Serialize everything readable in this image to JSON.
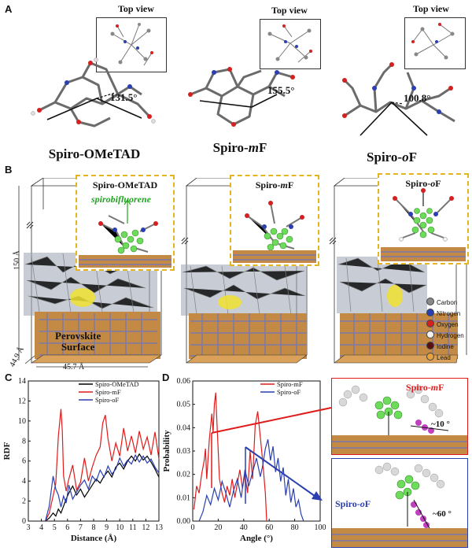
{
  "panel_a": {
    "label": "A",
    "top_view_label": "Top view",
    "molecules": [
      {
        "name": "Spiro-OMeTAD",
        "angle": "131.5°"
      },
      {
        "name_html": "Spiro-<i>m</i>F",
        "name": "Spiro-mF",
        "angle": "155.5°"
      },
      {
        "name_html": "Spiro-<i>o</i>F",
        "name": "Spiro-oF",
        "angle": "100.8°"
      }
    ]
  },
  "panel_b": {
    "label": "B",
    "insets": [
      {
        "title": "Spiro-OMeTAD",
        "annotation": "spirobifluorene"
      },
      {
        "title": "Spiro-mF"
      },
      {
        "title": "Spiro-oF"
      }
    ],
    "box_height": "150 Å",
    "box_depth": "44.9 Å",
    "box_width": "45.7 Å",
    "surface_label_line1": "Perovskite",
    "surface_label_line2": "Surface",
    "legend": [
      {
        "name": "Carbon",
        "color": "#8a8a8a"
      },
      {
        "name": "Nitrogen",
        "color": "#2b3fb0"
      },
      {
        "name": "Oxygen",
        "color": "#d42020"
      },
      {
        "name": "Hydrogen",
        "color": "#f2f2f2"
      },
      {
        "name": "Iodine",
        "color": "#5a1010"
      },
      {
        "name": "Lead",
        "color": "#e6a23c"
      }
    ]
  },
  "panel_c": {
    "label": "C"
  },
  "panel_d": {
    "label": "D",
    "inset_labels": [
      "Spiro-mF",
      "Spiro-oF"
    ],
    "inset_angles": [
      "~10 °",
      "~60 °"
    ]
  },
  "chart_data": [
    {
      "type": "line",
      "panel": "C",
      "xlabel": "Distance (Å)",
      "ylabel": "RDF",
      "xlim": [
        3,
        13
      ],
      "ylim": [
        0,
        14
      ],
      "xticks": [
        3,
        4,
        5,
        6,
        7,
        8,
        9,
        10,
        11,
        12,
        13
      ],
      "yticks": [
        0,
        2,
        4,
        6,
        8,
        10,
        12,
        14
      ],
      "legend_position": "top-right",
      "series": [
        {
          "name": "Spiro-OMeTAD",
          "color": "#000000",
          "x": [
            4.3,
            4.6,
            4.9,
            5.1,
            5.3,
            5.5,
            5.7,
            5.9,
            6.1,
            6.4,
            6.7,
            7.0,
            7.3,
            7.6,
            7.9,
            8.2,
            8.5,
            8.8,
            9.1,
            9.4,
            9.7,
            10.0,
            10.3,
            10.6,
            10.9,
            11.2,
            11.5,
            11.8,
            12.1,
            12.4,
            12.7,
            13.0
          ],
          "y": [
            0,
            0.3,
            0.8,
            0.5,
            1.2,
            0.8,
            1.5,
            2.2,
            2.8,
            3.5,
            2.6,
            3.2,
            2.4,
            3.0,
            3.6,
            4.2,
            3.8,
            4.5,
            5.0,
            4.4,
            5.4,
            5.8,
            5.2,
            6.0,
            6.5,
            6.0,
            6.7,
            6.1,
            6.5,
            5.9,
            5.2,
            4.4
          ]
        },
        {
          "name": "Spiro-mF",
          "color": "#e01b1b",
          "x": [
            4.3,
            4.6,
            4.9,
            5.1,
            5.3,
            5.5,
            5.6,
            5.7,
            5.9,
            6.1,
            6.4,
            6.7,
            7.0,
            7.3,
            7.6,
            7.9,
            8.2,
            8.5,
            8.7,
            8.9,
            9.1,
            9.4,
            9.7,
            10.0,
            10.3,
            10.6,
            10.9,
            11.2,
            11.5,
            11.8,
            12.1,
            12.4,
            12.7,
            13.0
          ],
          "y": [
            0,
            0.8,
            2.5,
            3.8,
            8.5,
            11.2,
            9.0,
            4.5,
            3.0,
            4.2,
            5.6,
            3.1,
            3.9,
            6.3,
            4.0,
            5.4,
            6.6,
            7.4,
            9.8,
            10.6,
            8.2,
            6.0,
            7.8,
            6.5,
            9.3,
            7.0,
            8.5,
            6.8,
            9.0,
            7.2,
            8.4,
            6.6,
            8.9,
            6.2
          ]
        },
        {
          "name": "Spiro-oF",
          "color": "#2b3fb0",
          "x": [
            4.3,
            4.6,
            4.9,
            5.1,
            5.3,
            5.5,
            5.7,
            5.9,
            6.1,
            6.4,
            6.7,
            7.0,
            7.3,
            7.6,
            7.9,
            8.2,
            8.5,
            8.8,
            9.1,
            9.4,
            9.7,
            10.0,
            10.3,
            10.6,
            10.9,
            11.2,
            11.5,
            11.8,
            12.1,
            12.4,
            12.7,
            13.0
          ],
          "y": [
            0,
            1.5,
            4.5,
            3.2,
            2.6,
            1.4,
            2.5,
            1.8,
            3.6,
            2.2,
            2.9,
            3.6,
            4.1,
            3.2,
            4.5,
            4.0,
            5.1,
            4.4,
            5.5,
            4.7,
            5.2,
            6.3,
            5.5,
            6.1,
            5.7,
            6.6,
            5.9,
            6.5,
            5.8,
            6.2,
            5.4,
            4.8
          ]
        }
      ]
    },
    {
      "type": "line",
      "panel": "D",
      "xlabel": "Angle (°)",
      "ylabel": "Probability",
      "xlim": [
        0,
        100
      ],
      "ylim": [
        0,
        0.06
      ],
      "xticks": [
        0,
        20,
        40,
        60,
        80,
        100
      ],
      "yticks": [
        0.0,
        0.01,
        0.02,
        0.03,
        0.04,
        0.05,
        0.06
      ],
      "legend_position": "top-right",
      "series": [
        {
          "name": "Spiro-mF",
          "color": "#e01b1b",
          "x": [
            1,
            3,
            5,
            7,
            9,
            10,
            11,
            13,
            15,
            16,
            17,
            18,
            19,
            20,
            21,
            23,
            25,
            27,
            29,
            31,
            33,
            35,
            37,
            39,
            41,
            43,
            45,
            47,
            49,
            51,
            53,
            55,
            57,
            58
          ],
          "y": [
            0.005,
            0.015,
            0.012,
            0.02,
            0.026,
            0.031,
            0.018,
            0.035,
            0.046,
            0.038,
            0.05,
            0.055,
            0.042,
            0.03,
            0.018,
            0.012,
            0.008,
            0.015,
            0.011,
            0.018,
            0.01,
            0.016,
            0.022,
            0.014,
            0.02,
            0.012,
            0.03,
            0.018,
            0.041,
            0.047,
            0.036,
            0.025,
            0.012,
            0.0
          ]
        },
        {
          "name": "Spiro-oF",
          "color": "#2b3fb0",
          "x": [
            5,
            8,
            11,
            14,
            17,
            20,
            23,
            26,
            29,
            32,
            35,
            38,
            41,
            44,
            47,
            50,
            53,
            55,
            57,
            59,
            61,
            63,
            65,
            67,
            69,
            71,
            73,
            75,
            77,
            79,
            81,
            83,
            85,
            87
          ],
          "y": [
            0.0,
            0.004,
            0.011,
            0.007,
            0.014,
            0.009,
            0.017,
            0.012,
            0.006,
            0.013,
            0.018,
            0.01,
            0.022,
            0.015,
            0.021,
            0.027,
            0.019,
            0.024,
            0.031,
            0.035,
            0.026,
            0.032,
            0.021,
            0.027,
            0.017,
            0.023,
            0.011,
            0.018,
            0.008,
            0.014,
            0.006,
            0.009,
            0.003,
            0.0
          ]
        }
      ]
    }
  ]
}
